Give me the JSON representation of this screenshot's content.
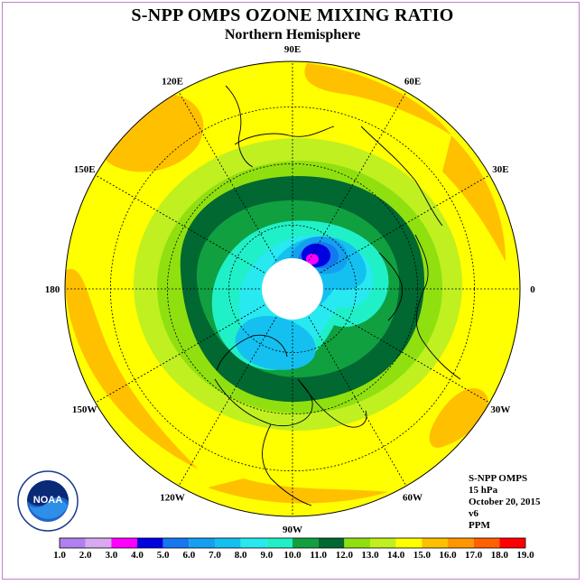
{
  "title": "S-NPP OMPS OZONE MIXING RATIO",
  "subtitle": "Northern Hemisphere",
  "info": {
    "instrument": "S-NPP OMPS",
    "pressure": "15 hPa",
    "date": "October 20, 2015",
    "version": "v6",
    "units": "PPM"
  },
  "longitude_labels": [
    "90E",
    "60E",
    "30E",
    "0",
    "30W",
    "60W",
    "90W",
    "120W",
    "150W",
    "180",
    "150E",
    "120E"
  ],
  "colorbar": {
    "ticks": [
      "1.0",
      "2.0",
      "3.0",
      "4.0",
      "5.0",
      "6.0",
      "7.0",
      "8.0",
      "9.0",
      "10.0",
      "11.0",
      "12.0",
      "13.0",
      "14.0",
      "15.0",
      "16.0",
      "17.0",
      "18.0",
      "19.0"
    ],
    "colors": [
      "#b080f0",
      "#d8a8f0",
      "#ff00ff",
      "#0000e0",
      "#1478f0",
      "#14a0f0",
      "#14c0f0",
      "#28e8f0",
      "#20f0c8",
      "#10a040",
      "#006830",
      "#90e010",
      "#c0f020",
      "#ffff00",
      "#ffc000",
      "#ff9800",
      "#ff6000",
      "#ff0000",
      "#8b4a2a"
    ]
  },
  "logo": {
    "text": "NOAA",
    "ring_text": "NATIONAL OCEANIC AND ATMOSPHERIC ADMINISTRATION · U.S. DEPARTMENT OF COMMERCE"
  },
  "map": {
    "projection": "north-polar-stereographic",
    "variable": "ozone mixing ratio",
    "pole_cap": "no data"
  }
}
